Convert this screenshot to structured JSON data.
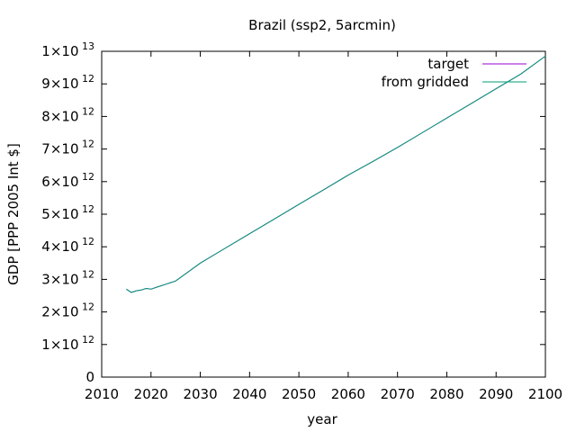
{
  "chart_data": {
    "type": "line",
    "title": "Brazil (ssp2, 5arcmin)",
    "xlabel": "year",
    "ylabel": "GDP [PPP 2005 Int $]",
    "xlim": [
      2010,
      2100
    ],
    "ylim": [
      0,
      10
    ],
    "y_unit_exponent": 12,
    "x_ticks": [
      "2010",
      "2020",
      "2030",
      "2040",
      "2050",
      "2060",
      "2070",
      "2080",
      "2090",
      "2100"
    ],
    "y_ticks": [
      {
        "value": 0,
        "mantissa": "0",
        "exp": ""
      },
      {
        "value": 1,
        "mantissa": "1×10",
        "exp": "12"
      },
      {
        "value": 2,
        "mantissa": "2×10",
        "exp": "12"
      },
      {
        "value": 3,
        "mantissa": "3×10",
        "exp": "12"
      },
      {
        "value": 4,
        "mantissa": "4×10",
        "exp": "12"
      },
      {
        "value": 5,
        "mantissa": "5×10",
        "exp": "12"
      },
      {
        "value": 6,
        "mantissa": "6×10",
        "exp": "12"
      },
      {
        "value": 7,
        "mantissa": "7×10",
        "exp": "12"
      },
      {
        "value": 8,
        "mantissa": "8×10",
        "exp": "12"
      },
      {
        "value": 9,
        "mantissa": "9×10",
        "exp": "12"
      },
      {
        "value": 10,
        "mantissa": "1×10",
        "exp": "13"
      }
    ],
    "legend_position": "top-right",
    "grid": false,
    "series": [
      {
        "name": "target",
        "color": "#9400d3",
        "x": [
          2015,
          2016,
          2017,
          2018,
          2019,
          2020,
          2021,
          2022,
          2023,
          2024,
          2025,
          2030,
          2035,
          2040,
          2045,
          2050,
          2055,
          2060,
          2065,
          2070,
          2075,
          2080,
          2085,
          2090,
          2095,
          2100
        ],
        "y": [
          2.7,
          2.6,
          2.65,
          2.67,
          2.72,
          2.7,
          2.75,
          2.8,
          2.85,
          2.9,
          2.95,
          3.5,
          3.95,
          4.4,
          4.85,
          5.3,
          5.75,
          6.2,
          6.62,
          7.05,
          7.5,
          7.95,
          8.4,
          8.85,
          9.3,
          9.85
        ]
      },
      {
        "name": "from gridded",
        "color": "#009e73",
        "x": [
          2015,
          2016,
          2017,
          2018,
          2019,
          2020,
          2021,
          2022,
          2023,
          2024,
          2025,
          2030,
          2035,
          2040,
          2045,
          2050,
          2055,
          2060,
          2065,
          2070,
          2075,
          2080,
          2085,
          2090,
          2095,
          2100
        ],
        "y": [
          2.7,
          2.6,
          2.65,
          2.67,
          2.72,
          2.7,
          2.75,
          2.8,
          2.85,
          2.9,
          2.95,
          3.5,
          3.95,
          4.4,
          4.85,
          5.3,
          5.75,
          6.2,
          6.62,
          7.05,
          7.5,
          7.95,
          8.4,
          8.85,
          9.3,
          9.85
        ]
      }
    ]
  }
}
